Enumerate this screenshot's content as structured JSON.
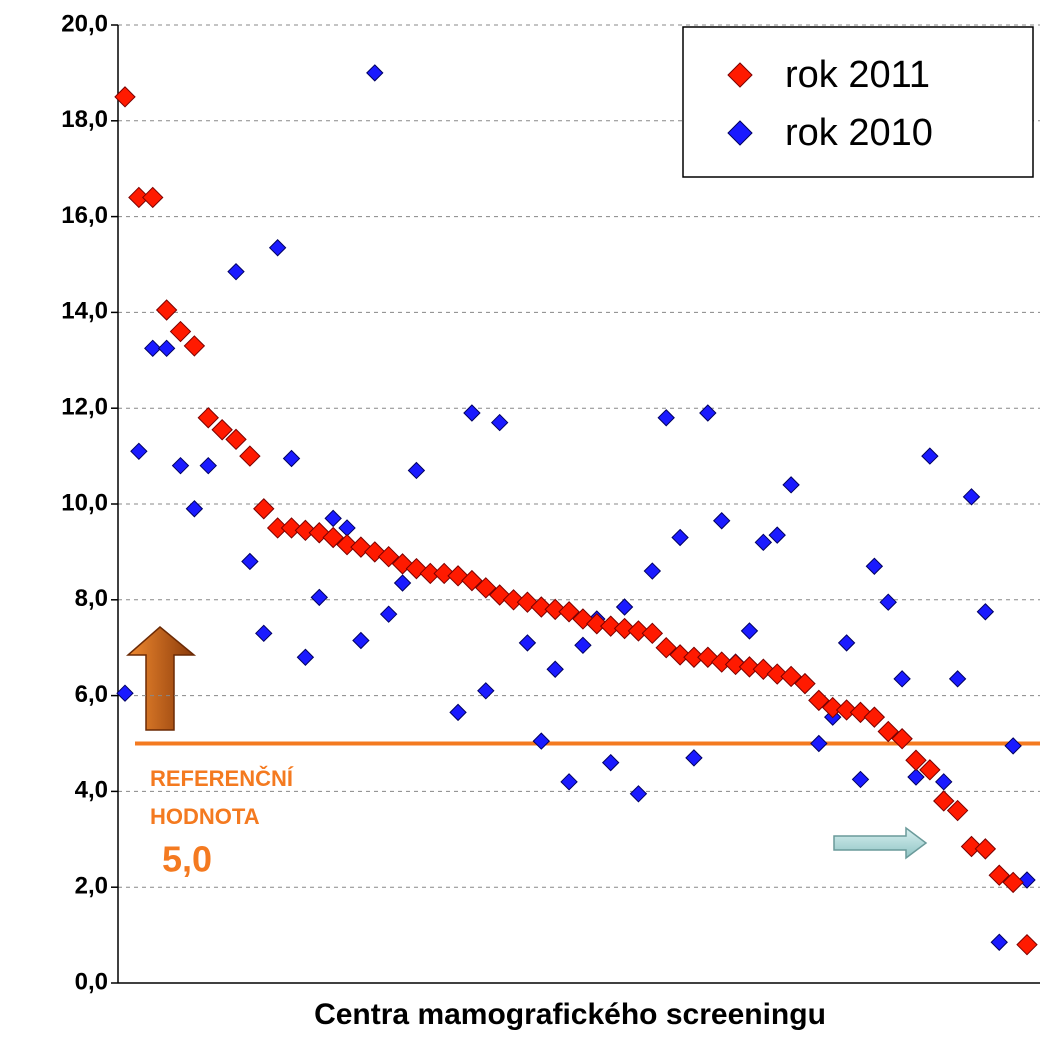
{
  "chart_data": {
    "type": "scatter",
    "x_label": "Centra mamografického screeningu",
    "categories": [
      null,
      null,
      null,
      null,
      null,
      null,
      null,
      null,
      null,
      null,
      null,
      null,
      null,
      null,
      null,
      null,
      null,
      null,
      null,
      null,
      null,
      null,
      null,
      null,
      null,
      null,
      null,
      null,
      null,
      null,
      null,
      null,
      null,
      null,
      null,
      null,
      null,
      null,
      null,
      null,
      null,
      null,
      null,
      null,
      null,
      null,
      null,
      null,
      null,
      null,
      null,
      null,
      null,
      null,
      null,
      null,
      null,
      null,
      null,
      null,
      null,
      null,
      null,
      null,
      null,
      null
    ],
    "series": [
      {
        "name": "rok 2011",
        "color": "#ff1a00",
        "values": [
          18.5,
          16.4,
          16.4,
          14.05,
          13.6,
          13.3,
          11.8,
          11.55,
          11.35,
          11.0,
          9.9,
          9.5,
          9.5,
          9.45,
          9.4,
          9.3,
          9.15,
          9.1,
          9.0,
          8.9,
          8.75,
          8.65,
          8.55,
          8.55,
          8.5,
          8.4,
          8.25,
          8.1,
          8.0,
          7.95,
          7.85,
          7.8,
          7.75,
          7.6,
          7.5,
          7.45,
          7.4,
          7.35,
          7.3,
          7.0,
          6.85,
          6.8,
          6.8,
          6.7,
          6.65,
          6.6,
          6.55,
          6.45,
          6.4,
          6.25,
          5.9,
          5.75,
          5.7,
          5.65,
          5.55,
          5.25,
          5.1,
          4.65,
          4.45,
          3.8,
          3.6,
          2.85,
          2.8,
          2.25,
          2.1,
          0.8
        ]
      },
      {
        "name": "rok 2010",
        "color": "#1a1aff",
        "values": [
          6.05,
          11.1,
          13.25,
          13.25,
          10.8,
          9.9,
          10.8,
          null,
          14.85,
          8.8,
          7.3,
          15.35,
          10.95,
          6.8,
          8.05,
          9.7,
          9.5,
          7.15,
          19.0,
          7.7,
          8.35,
          10.7,
          null,
          null,
          5.65,
          11.9,
          6.1,
          11.7,
          null,
          7.1,
          5.05,
          6.55,
          4.2,
          7.05,
          7.6,
          4.6,
          7.85,
          3.95,
          8.6,
          11.8,
          9.3,
          4.7,
          11.9,
          9.65,
          6.7,
          7.35,
          9.2,
          9.35,
          10.4,
          null,
          5.0,
          5.55,
          7.1,
          4.25,
          8.7,
          7.95,
          6.35,
          4.3,
          11.0,
          4.2,
          6.35,
          10.15,
          7.75,
          0.85,
          4.95,
          2.15
        ]
      }
    ],
    "ylim": [
      0,
      20
    ],
    "yticks": [
      {
        "value": 0,
        "label": "0,0"
      },
      {
        "value": 2,
        "label": "2,0"
      },
      {
        "value": 4,
        "label": "4,0"
      },
      {
        "value": 6,
        "label": "6,0"
      },
      {
        "value": 8,
        "label": "8,0"
      },
      {
        "value": 10,
        "label": "10,0"
      },
      {
        "value": 12,
        "label": "12,0"
      },
      {
        "value": 14,
        "label": "14,0"
      },
      {
        "value": 16,
        "label": "16,0"
      },
      {
        "value": 18,
        "label": "18,0"
      },
      {
        "value": 20,
        "label": "20,0"
      }
    ],
    "grid": true,
    "legend": "top-right",
    "reference": {
      "value": 5,
      "label": "5,0",
      "text": [
        "REFERENČNÍ",
        "HODNOTA"
      ],
      "color": "#f47a20"
    }
  }
}
